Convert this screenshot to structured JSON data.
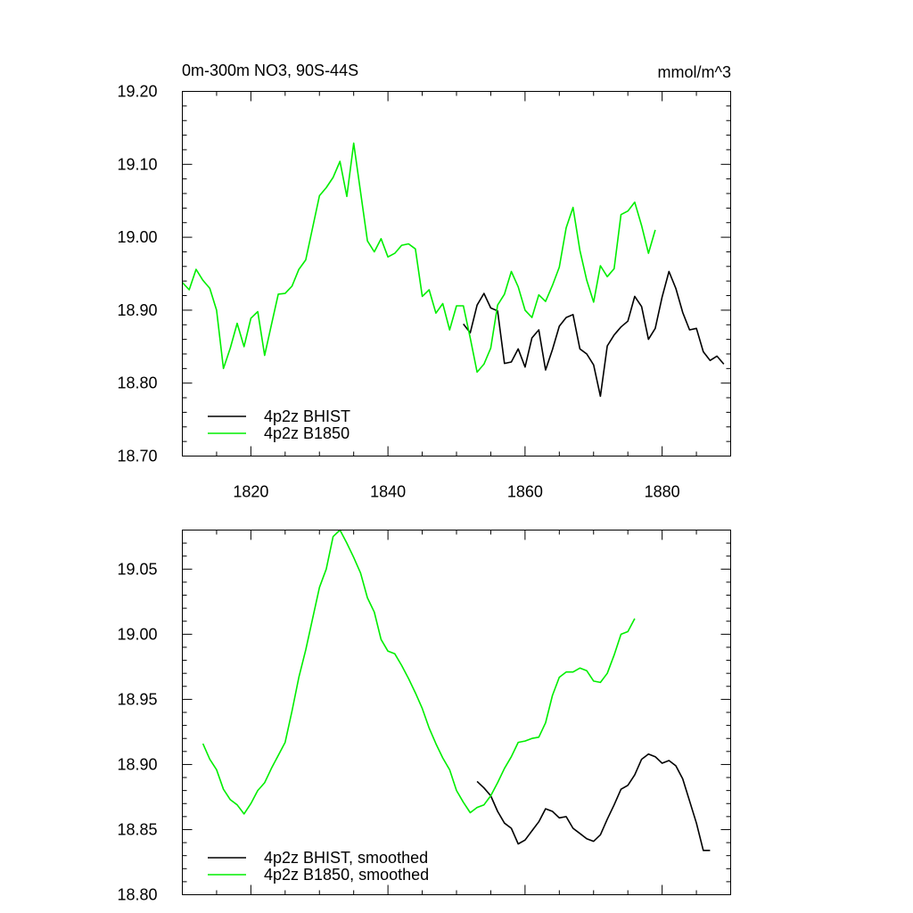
{
  "chart_data": [
    {
      "type": "line",
      "title": "0m-300m NO3, 90S-44S",
      "units": "mmol/m^3",
      "xlim": [
        1810,
        1890
      ],
      "ylim": [
        18.7,
        19.2
      ],
      "xticks": [
        1820,
        1840,
        1860,
        1880
      ],
      "xtick_labels": [
        "1820",
        "1840",
        "1860",
        "1880"
      ],
      "yticks": [
        18.7,
        18.8,
        18.9,
        19.0,
        19.1,
        19.2
      ],
      "ytick_labels": [
        "18.70",
        "18.80",
        "18.90",
        "19.00",
        "19.10",
        "19.20"
      ],
      "legend_position": "bottom-left",
      "series": [
        {
          "name": "4p2z BHIST",
          "color": "#000000",
          "x": [
            1851,
            1852,
            1853,
            1854,
            1855,
            1856,
            1857,
            1858,
            1859,
            1860,
            1861,
            1862,
            1863,
            1864,
            1865,
            1866,
            1867,
            1868,
            1869,
            1870,
            1871,
            1872,
            1873,
            1874,
            1875,
            1876,
            1877,
            1878,
            1879,
            1880,
            1881,
            1882,
            1883,
            1884,
            1885,
            1886,
            1887,
            1888,
            1889
          ],
          "y": [
            18.881,
            18.869,
            18.907,
            18.923,
            18.903,
            18.899,
            18.827,
            18.829,
            18.847,
            18.822,
            18.862,
            18.873,
            18.818,
            18.846,
            18.878,
            18.89,
            18.894,
            18.847,
            18.84,
            18.825,
            18.782,
            18.851,
            18.866,
            18.877,
            18.885,
            18.919,
            18.905,
            18.86,
            18.875,
            18.918,
            18.953,
            18.93,
            18.897,
            18.873,
            18.875,
            18.843,
            18.831,
            18.837,
            18.826
          ]
        },
        {
          "name": "4p2z B1850",
          "color": "#00ee00",
          "x": [
            1810,
            1811,
            1812,
            1813,
            1814,
            1815,
            1816,
            1817,
            1818,
            1819,
            1820,
            1821,
            1822,
            1823,
            1824,
            1825,
            1826,
            1827,
            1828,
            1829,
            1830,
            1831,
            1832,
            1833,
            1834,
            1835,
            1836,
            1837,
            1838,
            1839,
            1840,
            1841,
            1842,
            1843,
            1844,
            1845,
            1846,
            1847,
            1848,
            1849,
            1850,
            1851,
            1852,
            1853,
            1854,
            1855,
            1856,
            1857,
            1858,
            1859,
            1860,
            1861,
            1862,
            1863,
            1864,
            1865,
            1866,
            1867,
            1868,
            1869,
            1870,
            1871,
            1872,
            1873,
            1874,
            1875,
            1876,
            1877,
            1878,
            1879
          ],
          "y": [
            18.938,
            18.928,
            18.956,
            18.941,
            18.93,
            18.9,
            18.82,
            18.848,
            18.882,
            18.85,
            18.889,
            18.898,
            18.838,
            18.88,
            18.922,
            18.923,
            18.933,
            18.956,
            18.969,
            19.013,
            19.057,
            19.068,
            19.082,
            19.104,
            19.056,
            19.129,
            19.062,
            18.995,
            18.98,
            18.998,
            18.973,
            18.978,
            18.989,
            18.991,
            18.984,
            18.919,
            18.928,
            18.896,
            18.909,
            18.873,
            18.906,
            18.906,
            18.862,
            18.815,
            18.826,
            18.848,
            18.907,
            18.922,
            18.953,
            18.932,
            18.9,
            18.89,
            18.921,
            18.912,
            18.934,
            18.959,
            19.013,
            19.041,
            18.982,
            18.941,
            18.911,
            18.961,
            18.946,
            18.957,
            19.031,
            19.036,
            19.048,
            19.016,
            18.978,
            19.01
          ]
        }
      ]
    },
    {
      "type": "line",
      "xlim": [
        1810,
        1890
      ],
      "ylim": [
        18.8,
        19.08
      ],
      "xticks": [
        1820,
        1840,
        1860,
        1880
      ],
      "yticks": [
        18.8,
        18.85,
        18.9,
        18.95,
        19.0,
        19.05
      ],
      "ytick_labels": [
        "18.80",
        "18.85",
        "18.90",
        "18.95",
        "19.00",
        "19.05"
      ],
      "legend_position": "bottom-left",
      "series": [
        {
          "name": "4p2z BHIST, smoothed",
          "color": "#000000",
          "x": [
            1853,
            1854,
            1855,
            1856,
            1857,
            1858,
            1859,
            1860,
            1861,
            1862,
            1863,
            1864,
            1865,
            1866,
            1867,
            1868,
            1869,
            1870,
            1871,
            1872,
            1873,
            1874,
            1875,
            1876,
            1877,
            1878,
            1879,
            1880,
            1881,
            1882,
            1883,
            1884,
            1885,
            1886,
            1887
          ],
          "y": [
            18.887,
            18.882,
            18.876,
            18.864,
            18.855,
            18.851,
            18.839,
            18.842,
            18.849,
            18.856,
            18.866,
            18.864,
            18.859,
            18.86,
            18.851,
            18.847,
            18.843,
            18.841,
            18.846,
            18.858,
            18.869,
            18.881,
            18.884,
            18.892,
            18.904,
            18.908,
            18.906,
            18.901,
            18.903,
            18.899,
            18.889,
            18.872,
            18.855,
            18.834,
            18.834
          ]
        },
        {
          "name": "4p2z B1850, smoothed",
          "color": "#00ee00",
          "x": [
            1813,
            1814,
            1815,
            1816,
            1817,
            1818,
            1819,
            1820,
            1821,
            1822,
            1823,
            1824,
            1825,
            1826,
            1827,
            1828,
            1829,
            1830,
            1831,
            1832,
            1833,
            1834,
            1835,
            1836,
            1837,
            1838,
            1839,
            1840,
            1841,
            1842,
            1843,
            1844,
            1845,
            1846,
            1847,
            1848,
            1849,
            1850,
            1851,
            1852,
            1853,
            1854,
            1855,
            1856,
            1857,
            1858,
            1859,
            1860,
            1861,
            1862,
            1863,
            1864,
            1865,
            1866,
            1867,
            1868,
            1869,
            1870,
            1871,
            1872,
            1873,
            1874,
            1875,
            1876
          ],
          "y": [
            18.916,
            18.904,
            18.896,
            18.881,
            18.873,
            18.869,
            18.862,
            18.87,
            18.88,
            18.886,
            18.897,
            18.907,
            18.917,
            18.941,
            18.967,
            18.988,
            19.012,
            19.036,
            19.05,
            19.075,
            19.08,
            19.07,
            19.059,
            19.047,
            19.028,
            19.017,
            18.996,
            18.987,
            18.985,
            18.976,
            18.966,
            18.955,
            18.943,
            18.928,
            18.916,
            18.905,
            18.896,
            18.88,
            18.871,
            18.863,
            18.867,
            18.869,
            18.876,
            18.886,
            18.897,
            18.906,
            18.917,
            18.918,
            18.92,
            18.921,
            18.932,
            18.953,
            18.967,
            18.971,
            18.971,
            18.974,
            18.972,
            18.964,
            18.963,
            18.97,
            18.984,
            19.0,
            19.002,
            19.012
          ]
        }
      ]
    }
  ]
}
